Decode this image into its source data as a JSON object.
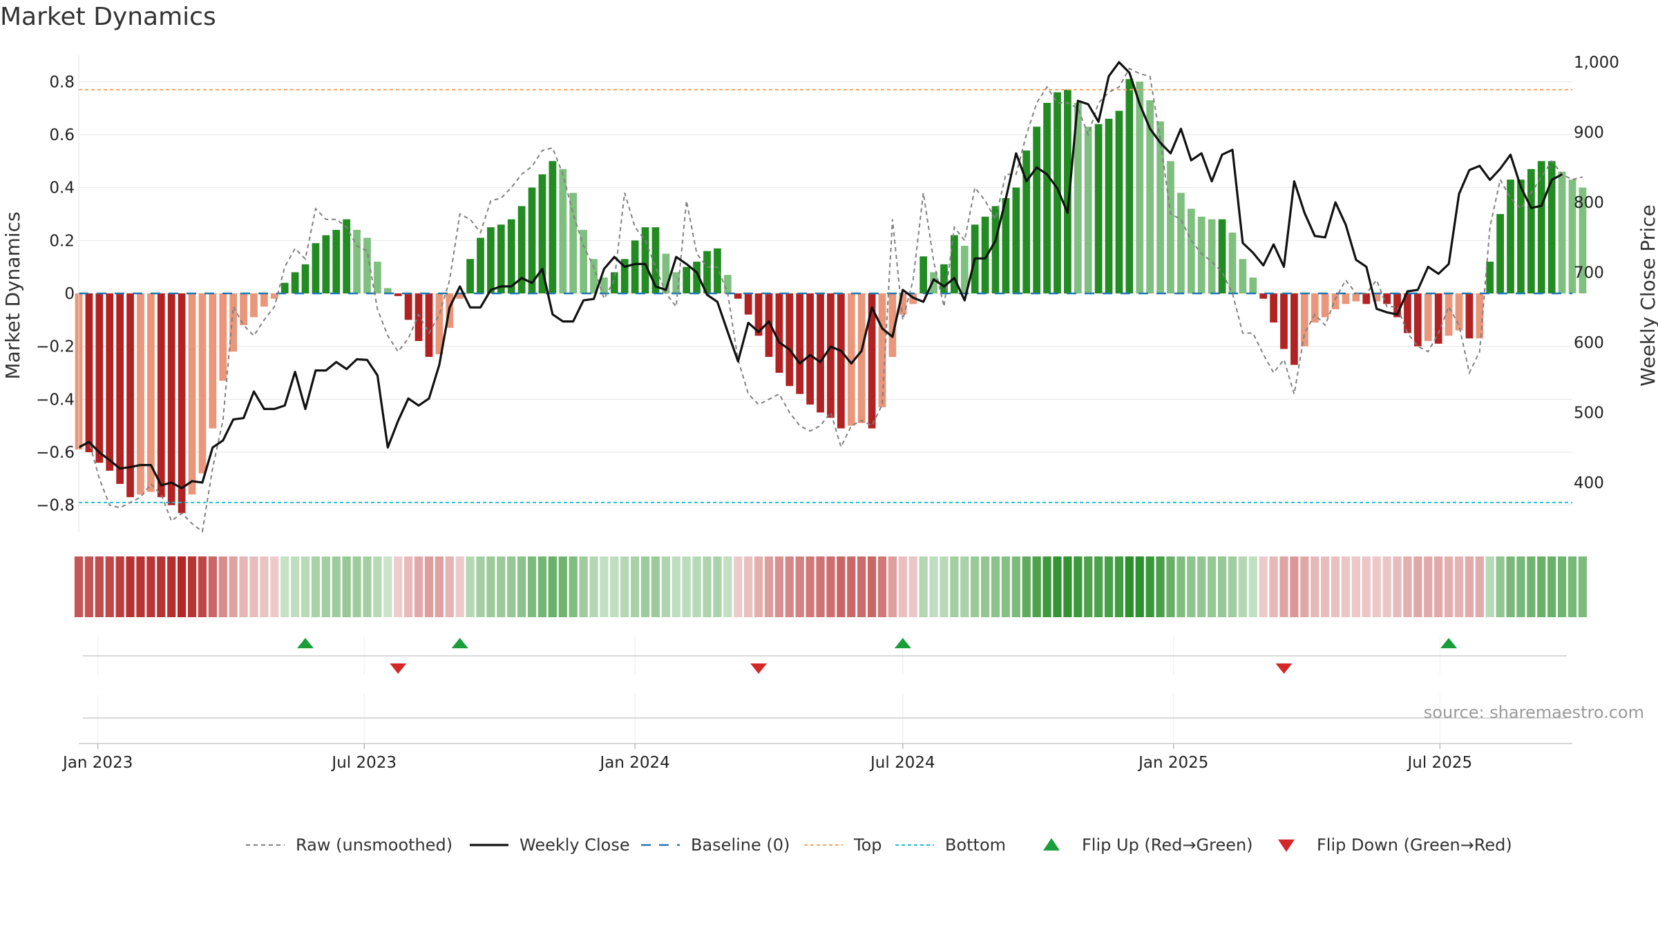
{
  "title": "Market Dynamics",
  "source": "source: sharemaestro.com",
  "chart_data": {
    "type": "bar",
    "title": "Market Dynamics",
    "ylabel_left": "Market Dynamics",
    "ylabel_right": "Weekly Close Price",
    "ylim_left": [
      -0.9,
      0.9
    ],
    "ylim_right": [
      330,
      1010
    ],
    "yticks_left": [
      {
        "value": 0.8,
        "label": "0.8"
      },
      {
        "value": 0.6,
        "label": "0.6"
      },
      {
        "value": 0.4,
        "label": "0.4"
      },
      {
        "value": 0.2,
        "label": "0.2"
      },
      {
        "value": 0.0,
        "label": "0"
      },
      {
        "value": -0.2,
        "label": "−0.2"
      },
      {
        "value": -0.4,
        "label": "−0.4"
      },
      {
        "value": -0.6,
        "label": "−0.6"
      },
      {
        "value": -0.8,
        "label": "−0.8"
      }
    ],
    "yticks_right": [
      {
        "value": 1000,
        "label": "1,000"
      },
      {
        "value": 900,
        "label": "900"
      },
      {
        "value": 800,
        "label": "800"
      },
      {
        "value": 700,
        "label": "700"
      },
      {
        "value": 600,
        "label": "600"
      },
      {
        "value": 500,
        "label": "500"
      },
      {
        "value": 400,
        "label": "400"
      }
    ],
    "x_start": "2022-12-19",
    "x_end": "2025-09-29",
    "xticks": [
      {
        "date": "2023-01-01",
        "label": "Jan 2023"
      },
      {
        "date": "2023-07-01",
        "label": "Jul 2023"
      },
      {
        "date": "2024-01-01",
        "label": "Jan 2024"
      },
      {
        "date": "2024-07-01",
        "label": "Jul 2024"
      },
      {
        "date": "2025-01-01",
        "label": "Jan 2025"
      },
      {
        "date": "2025-07-01",
        "label": "Jul 2025"
      }
    ],
    "first_week": "2022-12-19",
    "week_days": 7,
    "top_level": 0.77,
    "bottom_level": -0.79,
    "baseline": 0,
    "colors": {
      "strong_green": "#228b22",
      "light_green": "#7fbf7f",
      "strong_red": "#b22222",
      "light_red": "#e9967a",
      "weekly_close": "#111111",
      "raw": "#808080",
      "baseline": "#1f77b4",
      "top": "#f4a460",
      "bottom": "#17becf",
      "flip_up": "#1a9e3a",
      "flip_down": "#d62728"
    },
    "series": [
      {
        "name": "Market Dynamics",
        "values": [
          -0.59,
          -0.6,
          -0.64,
          -0.67,
          -0.72,
          -0.77,
          -0.76,
          -0.75,
          -0.77,
          -0.8,
          -0.83,
          -0.76,
          -0.68,
          -0.51,
          -0.33,
          -0.22,
          -0.12,
          -0.09,
          -0.05,
          -0.02,
          0.04,
          0.08,
          0.11,
          0.19,
          0.22,
          0.24,
          0.28,
          0.24,
          0.21,
          0.12,
          0.02,
          -0.01,
          -0.1,
          -0.18,
          -0.24,
          -0.23,
          -0.13,
          -0.02,
          0.13,
          0.21,
          0.25,
          0.26,
          0.28,
          0.33,
          0.4,
          0.45,
          0.5,
          0.47,
          0.38,
          0.24,
          0.13,
          0.06,
          0.08,
          0.13,
          0.2,
          0.25,
          0.25,
          0.15,
          0.08,
          0.1,
          0.12,
          0.16,
          0.17,
          0.07,
          -0.02,
          -0.08,
          -0.16,
          -0.24,
          -0.3,
          -0.35,
          -0.38,
          -0.42,
          -0.45,
          -0.47,
          -0.51,
          -0.5,
          -0.49,
          -0.51,
          -0.43,
          -0.24,
          -0.08,
          -0.04,
          0.14,
          0.08,
          0.11,
          0.22,
          0.18,
          0.26,
          0.29,
          0.33,
          0.36,
          0.4,
          0.54,
          0.63,
          0.72,
          0.76,
          0.77,
          0.72,
          0.63,
          0.64,
          0.66,
          0.69,
          0.81,
          0.8,
          0.73,
          0.65,
          0.5,
          0.38,
          0.32,
          0.29,
          0.28,
          0.28,
          0.23,
          0.13,
          0.06,
          -0.02,
          -0.11,
          -0.21,
          -0.27,
          -0.2,
          -0.11,
          -0.09,
          -0.06,
          -0.04,
          -0.03,
          -0.04,
          -0.03,
          -0.04,
          -0.09,
          -0.15,
          -0.2,
          -0.18,
          -0.19,
          -0.16,
          -0.14,
          -0.17,
          -0.17,
          0.12,
          0.3,
          0.43,
          0.43,
          0.47,
          0.5,
          0.5,
          0.46,
          0.43,
          0.4
        ]
      },
      {
        "name": "Raw (unsmoothed)",
        "values": [
          -0.58,
          -0.56,
          -0.7,
          -0.8,
          -0.81,
          -0.79,
          -0.77,
          -0.72,
          -0.76,
          -0.86,
          -0.83,
          -0.87,
          -0.9,
          -0.66,
          -0.48,
          -0.05,
          -0.12,
          -0.16,
          -0.1,
          -0.05,
          0.1,
          0.17,
          0.13,
          0.32,
          0.28,
          0.28,
          0.25,
          0.18,
          0.16,
          -0.06,
          -0.16,
          -0.22,
          -0.17,
          -0.08,
          -0.15,
          -0.08,
          0.05,
          0.3,
          0.28,
          0.23,
          0.35,
          0.36,
          0.4,
          0.45,
          0.48,
          0.54,
          0.55,
          0.45,
          0.3,
          0.18,
          0.1,
          -0.02,
          0.05,
          0.38,
          0.25,
          0.2,
          0.1,
          0.0,
          -0.05,
          0.35,
          0.15,
          0.1,
          0.1,
          0.0,
          -0.25,
          -0.38,
          -0.42,
          -0.4,
          -0.38,
          -0.45,
          -0.5,
          -0.52,
          -0.5,
          -0.45,
          -0.58,
          -0.5,
          -0.48,
          -0.5,
          -0.42,
          0.28,
          -0.1,
          0.05,
          0.38,
          0.12,
          -0.05,
          0.25,
          0.2,
          0.4,
          0.35,
          0.28,
          0.45,
          0.45,
          0.6,
          0.72,
          0.78,
          0.72,
          0.72,
          0.7,
          0.6,
          0.72,
          0.76,
          0.78,
          0.85,
          0.83,
          0.82,
          0.58,
          0.3,
          0.28,
          0.2,
          0.15,
          0.12,
          0.08,
          0.0,
          -0.15,
          -0.15,
          -0.23,
          -0.3,
          -0.25,
          -0.38,
          -0.15,
          -0.08,
          -0.12,
          -0.02,
          0.05,
          0.0,
          0.0,
          0.05,
          -0.05,
          -0.05,
          -0.15,
          -0.2,
          -0.22,
          -0.15,
          -0.05,
          -0.12,
          -0.3,
          -0.22,
          0.25,
          0.43,
          0.36,
          0.32,
          0.38,
          0.44,
          0.5,
          0.45,
          0.43,
          0.44
        ]
      },
      {
        "name": "Weekly Close",
        "values": [
          450,
          458,
          443,
          432,
          420,
          422,
          425,
          425,
          396,
          400,
          392,
          402,
          400,
          450,
          460,
          490,
          492,
          530,
          505,
          505,
          510,
          558,
          505,
          560,
          560,
          572,
          562,
          576,
          575,
          553,
          450,
          488,
          520,
          510,
          520,
          568,
          650,
          680,
          650,
          650,
          675,
          680,
          680,
          692,
          685,
          705,
          640,
          630,
          630,
          660,
          662,
          705,
          722,
          708,
          712,
          712,
          680,
          675,
          722,
          712,
          700,
          668,
          658,
          615,
          573,
          628,
          615,
          630,
          600,
          590,
          570,
          582,
          572,
          594,
          588,
          570,
          588,
          650,
          620,
          608,
          675,
          664,
          658,
          690,
          680,
          692,
          660,
          720,
          720,
          745,
          805,
          870,
          830,
          850,
          840,
          820,
          785,
          945,
          940,
          915,
          980,
          1000,
          985,
          940,
          905,
          885,
          870,
          905,
          860,
          870,
          830,
          868,
          875,
          742,
          728,
          710,
          740,
          708,
          830,
          785,
          752,
          750,
          800,
          768,
          718,
          708,
          648,
          643,
          640,
          673,
          675,
          708,
          698,
          712,
          812,
          846,
          852,
          832,
          848,
          868,
          822,
          792,
          795,
          832,
          840
        ]
      }
    ],
    "flips": [
      {
        "type": "up",
        "date": "2023-05-22"
      },
      {
        "type": "down",
        "date": "2023-07-24"
      },
      {
        "type": "up",
        "date": "2023-09-04"
      },
      {
        "type": "down",
        "date": "2024-03-25"
      },
      {
        "type": "up",
        "date": "2024-07-01"
      },
      {
        "type": "down",
        "date": "2025-03-17"
      },
      {
        "type": "up",
        "date": "2025-07-07"
      }
    ],
    "legend_placement": "bottom-center",
    "legend": [
      {
        "label": "Raw (unsmoothed)",
        "style": "dashed-gray"
      },
      {
        "label": "Weekly Close",
        "style": "solid-black"
      },
      {
        "label": "Baseline (0)",
        "style": "dashed-blue"
      },
      {
        "label": "Top",
        "style": "dotted-orange"
      },
      {
        "label": "Bottom",
        "style": "dotted-cyan"
      },
      {
        "label": "Flip Up (Red→Green)",
        "style": "triangle-up-green"
      },
      {
        "label": "Flip Down (Green→Red)",
        "style": "triangle-down-red"
      }
    ]
  }
}
